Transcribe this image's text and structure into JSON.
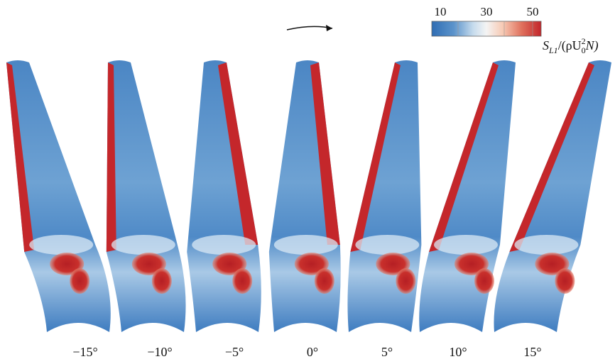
{
  "colorbar": {
    "ticks": [
      "10",
      "30",
      "50"
    ],
    "label_parts": [
      "S",
      "L1",
      "/(ρU",
      "0",
      "2",
      "N)"
    ]
  },
  "panels": [
    {
      "label": "−15°"
    },
    {
      "label": "−10°"
    },
    {
      "label": "−5°"
    },
    {
      "label": "0°"
    },
    {
      "label": "5°"
    },
    {
      "label": "10°"
    },
    {
      "label": "15°"
    }
  ]
}
